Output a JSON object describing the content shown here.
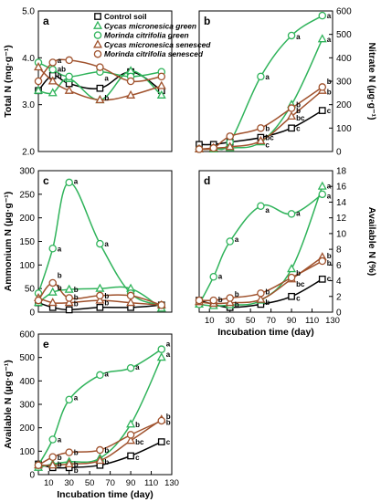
{
  "chart_data": [
    {
      "id": "a",
      "type": "line",
      "panel_label": "a",
      "xlim": [
        0,
        130
      ],
      "ylim": [
        2.0,
        5.0
      ],
      "yticks": [
        2.0,
        3.0,
        4.0,
        5.0
      ],
      "ytick_labels": [
        "2.0",
        "3.0",
        "4.0",
        "5.0"
      ],
      "ylabel": "Total N (mg·g⁻¹)",
      "legend": [
        {
          "name": "Control soil",
          "color": "#000000",
          "marker": "square",
          "italic": false
        },
        {
          "name": "Cycas micronesica green",
          "color": "#2fb35a",
          "marker": "triangle",
          "italic": true,
          "plain_suffix": ""
        },
        {
          "name": "Morinda citrifolia green",
          "color": "#2fb35a",
          "marker": "circle",
          "italic": true,
          "plain_suffix": ""
        },
        {
          "name": "Cycas micronesica senesced",
          "color": "#a0522d",
          "marker": "triangle",
          "italic": true,
          "plain_suffix": ""
        },
        {
          "name": "Morinda citrifolia senesced",
          "color": "#a0522d",
          "marker": "circle",
          "italic": true,
          "plain_suffix": ""
        }
      ],
      "series": [
        {
          "key": "control",
          "x": [
            0,
            14,
            30,
            60,
            90,
            120
          ],
          "y": [
            3.3,
            3.62,
            3.45,
            3.35,
            3.7,
            3.3
          ]
        },
        {
          "key": "cycas_green",
          "x": [
            0,
            14,
            30,
            60,
            90,
            120
          ],
          "y": [
            3.3,
            3.25,
            3.55,
            3.1,
            3.72,
            3.2
          ]
        },
        {
          "key": "morinda_green",
          "x": [
            0,
            14,
            30,
            60,
            90,
            120
          ],
          "y": [
            3.9,
            3.75,
            3.6,
            3.7,
            3.6,
            3.7
          ]
        },
        {
          "key": "cycas_senesced",
          "x": [
            0,
            14,
            30,
            60,
            90,
            120
          ],
          "y": [
            3.8,
            3.5,
            3.3,
            3.1,
            3.2,
            3.4
          ]
        },
        {
          "key": "morinda_senesced",
          "x": [
            0,
            14,
            30,
            60,
            90,
            120
          ],
          "y": [
            3.5,
            3.9,
            3.95,
            3.8,
            3.5,
            3.6
          ]
        }
      ],
      "annotations": [
        {
          "text": "a",
          "x": 14,
          "y": 3.95
        },
        {
          "text": "ab",
          "x": 14,
          "y": 3.76
        },
        {
          "text": "b",
          "x": 14,
          "y": 3.62
        },
        {
          "text": "a",
          "x": 60,
          "y": 3.57
        },
        {
          "text": "b",
          "x": 60,
          "y": 3.15
        }
      ]
    },
    {
      "id": "b",
      "type": "line",
      "panel_label": "b",
      "xlim": [
        0,
        130
      ],
      "ylim": [
        0,
        600
      ],
      "yticks": [
        0,
        100,
        200,
        300,
        400,
        500,
        600
      ],
      "ytick_labels": [
        "0",
        "100",
        "200",
        "300",
        "400",
        "500",
        "600"
      ],
      "ylabel": "Nitrate N (µg·g⁻¹)",
      "series": [
        {
          "key": "control",
          "x": [
            0,
            14,
            30,
            60,
            90,
            120
          ],
          "y": [
            30,
            30,
            40,
            60,
            100,
            175
          ]
        },
        {
          "key": "cycas_green",
          "x": [
            0,
            14,
            30,
            60,
            90,
            120
          ],
          "y": [
            10,
            10,
            15,
            40,
            200,
            480
          ]
        },
        {
          "key": "morinda_green",
          "x": [
            0,
            14,
            30,
            60,
            90,
            120
          ],
          "y": [
            10,
            15,
            40,
            320,
            495,
            580
          ]
        },
        {
          "key": "cycas_senesced",
          "x": [
            0,
            14,
            30,
            60,
            90,
            120
          ],
          "y": [
            10,
            15,
            20,
            45,
            150,
            260
          ]
        },
        {
          "key": "morinda_senesced",
          "x": [
            0,
            14,
            30,
            60,
            90,
            120
          ],
          "y": [
            10,
            15,
            65,
            100,
            185,
            275
          ]
        }
      ],
      "annotations": [
        {
          "text": "a",
          "x": 120,
          "y": 580
        },
        {
          "text": "a",
          "x": 120,
          "y": 480
        },
        {
          "text": "a",
          "x": 60,
          "y": 320
        },
        {
          "text": "a",
          "x": 90,
          "y": 490
        },
        {
          "text": "b",
          "x": 90,
          "y": 200
        },
        {
          "text": "b",
          "x": 90,
          "y": 175
        },
        {
          "text": "bc",
          "x": 90,
          "y": 145
        },
        {
          "text": "c",
          "x": 90,
          "y": 100
        },
        {
          "text": "b",
          "x": 60,
          "y": 100
        },
        {
          "text": "bc",
          "x": 60,
          "y": 60
        },
        {
          "text": "c",
          "x": 60,
          "y": 30
        },
        {
          "text": "b",
          "x": 120,
          "y": 300
        },
        {
          "text": "b",
          "x": 120,
          "y": 255
        },
        {
          "text": "c",
          "x": 120,
          "y": 175
        }
      ]
    },
    {
      "id": "c",
      "type": "line",
      "panel_label": "c",
      "xlim": [
        0,
        130
      ],
      "ylim": [
        0,
        300
      ],
      "yticks": [
        0,
        50,
        100,
        150,
        200,
        250,
        300
      ],
      "ytick_labels": [
        "0",
        "50",
        "100",
        "150",
        "200",
        "250",
        "300"
      ],
      "ylabel": "Ammonium N (µg·g⁻¹)",
      "series": [
        {
          "key": "control",
          "x": [
            0,
            14,
            30,
            60,
            90,
            120
          ],
          "y": [
            20,
            10,
            5,
            10,
            10,
            15
          ]
        },
        {
          "key": "cycas_green",
          "x": [
            0,
            14,
            30,
            60,
            90,
            120
          ],
          "y": [
            20,
            42,
            48,
            50,
            50,
            8
          ]
        },
        {
          "key": "morinda_green",
          "x": [
            0,
            14,
            30,
            60,
            90,
            120
          ],
          "y": [
            40,
            135,
            275,
            145,
            40,
            15
          ]
        },
        {
          "key": "cycas_senesced",
          "x": [
            0,
            14,
            30,
            60,
            90,
            120
          ],
          "y": [
            30,
            20,
            20,
            25,
            20,
            15
          ]
        },
        {
          "key": "morinda_senesced",
          "x": [
            0,
            14,
            30,
            60,
            90,
            120
          ],
          "y": [
            25,
            62,
            30,
            35,
            35,
            15
          ]
        }
      ],
      "annotations": [
        {
          "text": "a",
          "x": 30,
          "y": 278
        },
        {
          "text": "a",
          "x": 14,
          "y": 135
        },
        {
          "text": "a",
          "x": 60,
          "y": 145
        },
        {
          "text": "b",
          "x": 14,
          "y": 78
        },
        {
          "text": "b",
          "x": 14,
          "y": 52
        },
        {
          "text": "b",
          "x": 30,
          "y": 48
        },
        {
          "text": "b",
          "x": 30,
          "y": 32
        },
        {
          "text": "b",
          "x": 30,
          "y": 18
        },
        {
          "text": "b",
          "x": 60,
          "y": 35
        },
        {
          "text": "b",
          "x": 60,
          "y": 20
        }
      ]
    },
    {
      "id": "d",
      "type": "line",
      "panel_label": "d",
      "xlim": [
        0,
        130
      ],
      "ylim": [
        0,
        18
      ],
      "yticks": [
        0,
        2,
        4,
        6,
        8,
        10,
        12,
        14,
        16,
        18
      ],
      "ytick_labels": [
        "0",
        "2",
        "4",
        "6",
        "8",
        "10",
        "12",
        "14",
        "16",
        "18"
      ],
      "xticks": [
        0,
        10,
        30,
        50,
        70,
        90,
        110,
        130
      ],
      "xtick_labels": [
        "",
        "10",
        "30",
        "50",
        "70",
        "90",
        "110",
        "130"
      ],
      "xlabel": "Incubation time (day)",
      "ylabel": "Available N (%)",
      "series": [
        {
          "key": "control",
          "x": [
            0,
            14,
            30,
            60,
            90,
            120
          ],
          "y": [
            1.5,
            1.0,
            0.6,
            1.0,
            2.0,
            4.2
          ]
        },
        {
          "key": "cycas_green",
          "x": [
            0,
            14,
            30,
            60,
            90,
            120
          ],
          "y": [
            1.0,
            0.8,
            0.9,
            1.5,
            5.5,
            16.0
          ]
        },
        {
          "key": "morinda_green",
          "x": [
            0,
            14,
            30,
            60,
            90,
            120
          ],
          "y": [
            1.0,
            4.5,
            9.0,
            13.5,
            12.5,
            15.0
          ]
        },
        {
          "key": "cycas_senesced",
          "x": [
            0,
            14,
            30,
            60,
            90,
            120
          ],
          "y": [
            1.3,
            1.1,
            1.2,
            1.6,
            4.2,
            7.0
          ]
        },
        {
          "key": "morinda_senesced",
          "x": [
            0,
            14,
            30,
            60,
            90,
            120
          ],
          "y": [
            1.5,
            1.5,
            1.8,
            2.4,
            4.4,
            6.5
          ]
        }
      ],
      "annotations": [
        {
          "text": "a",
          "x": 120,
          "y": 16.1
        },
        {
          "text": "a",
          "x": 120,
          "y": 14.8
        },
        {
          "text": "a",
          "x": 30,
          "y": 9.3
        },
        {
          "text": "a",
          "x": 60,
          "y": 13.0
        },
        {
          "text": "a",
          "x": 90,
          "y": 12.6
        },
        {
          "text": "a",
          "x": 14,
          "y": 4.6
        },
        {
          "text": "b",
          "x": 14,
          "y": 1.6
        },
        {
          "text": "b",
          "x": 30,
          "y": 2.3
        },
        {
          "text": "b",
          "x": 30,
          "y": 1.0
        },
        {
          "text": "b",
          "x": 60,
          "y": 2.6
        },
        {
          "text": "b",
          "x": 60,
          "y": 1.3
        },
        {
          "text": "b",
          "x": 90,
          "y": 5.0
        },
        {
          "text": "bc",
          "x": 90,
          "y": 3.6
        },
        {
          "text": "c",
          "x": 90,
          "y": 1.8
        },
        {
          "text": "b",
          "x": 120,
          "y": 7.2
        },
        {
          "text": "b",
          "x": 120,
          "y": 6.3
        },
        {
          "text": "c",
          "x": 120,
          "y": 4.3
        }
      ]
    },
    {
      "id": "e",
      "type": "line",
      "panel_label": "e",
      "xlim": [
        0,
        130
      ],
      "ylim": [
        0,
        600
      ],
      "yticks": [
        0,
        100,
        200,
        300,
        400,
        500,
        600
      ],
      "ytick_labels": [
        "0",
        "100",
        "200",
        "300",
        "400",
        "500",
        "600"
      ],
      "xticks": [
        0,
        10,
        30,
        50,
        70,
        90,
        110,
        130
      ],
      "xtick_labels": [
        "",
        "10",
        "30",
        "50",
        "70",
        "90",
        "110",
        "130"
      ],
      "xlabel": "Incubation time (day)",
      "ylabel": "Available N (µg·g⁻¹)",
      "series": [
        {
          "key": "control",
          "x": [
            0,
            14,
            30,
            60,
            90,
            120
          ],
          "y": [
            45,
            30,
            30,
            40,
            80,
            140
          ]
        },
        {
          "key": "cycas_green",
          "x": [
            0,
            14,
            30,
            60,
            90,
            120
          ],
          "y": [
            30,
            45,
            55,
            70,
            215,
            500
          ]
        },
        {
          "key": "morinda_green",
          "x": [
            0,
            14,
            30,
            60,
            90,
            120
          ],
          "y": [
            40,
            150,
            320,
            425,
            455,
            535
          ]
        },
        {
          "key": "cycas_senesced",
          "x": [
            0,
            14,
            30,
            60,
            90,
            120
          ],
          "y": [
            40,
            40,
            45,
            60,
            145,
            235
          ]
        },
        {
          "key": "morinda_senesced",
          "x": [
            0,
            14,
            30,
            60,
            90,
            120
          ],
          "y": [
            40,
            75,
            95,
            105,
            170,
            230
          ]
        }
      ],
      "annotations": [
        {
          "text": "a",
          "x": 120,
          "y": 560
        },
        {
          "text": "a",
          "x": 120,
          "y": 515
        },
        {
          "text": "a",
          "x": 30,
          "y": 330
        },
        {
          "text": "a",
          "x": 60,
          "y": 430
        },
        {
          "text": "a",
          "x": 90,
          "y": 460
        },
        {
          "text": "a",
          "x": 14,
          "y": 150
        },
        {
          "text": "b",
          "x": 14,
          "y": 75
        },
        {
          "text": "b",
          "x": 14,
          "y": 45
        },
        {
          "text": "b",
          "x": 30,
          "y": 95
        },
        {
          "text": "b",
          "x": 30,
          "y": 45
        },
        {
          "text": "b",
          "x": 30,
          "y": 20
        },
        {
          "text": "b",
          "x": 60,
          "y": 105
        },
        {
          "text": "b",
          "x": 60,
          "y": 55
        },
        {
          "text": "b",
          "x": 90,
          "y": 215
        },
        {
          "text": "bc",
          "x": 90,
          "y": 140
        },
        {
          "text": "c",
          "x": 90,
          "y": 75
        },
        {
          "text": "b",
          "x": 120,
          "y": 250
        },
        {
          "text": "b",
          "x": 120,
          "y": 225
        },
        {
          "text": "c",
          "x": 120,
          "y": 140
        }
      ]
    }
  ],
  "colors": {
    "control": "#000000",
    "green": "#2fb35a",
    "senesced": "#a0522d",
    "axis": "#000000"
  }
}
